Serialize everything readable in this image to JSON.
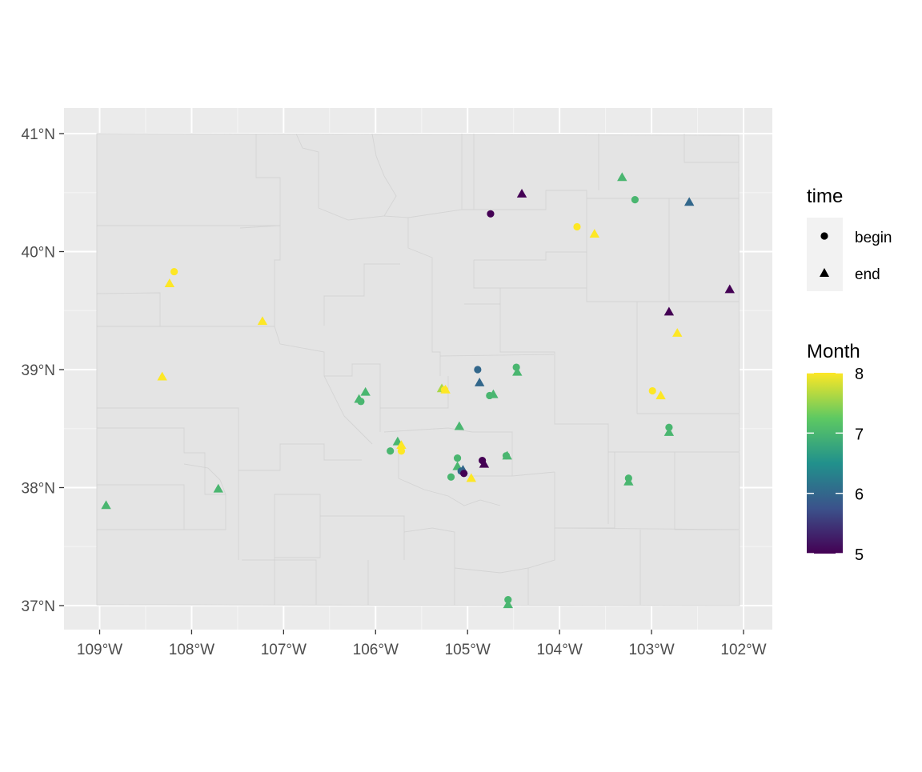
{
  "chart_data": {
    "type": "scatter",
    "title": "",
    "xlabel": "",
    "ylabel": "",
    "xlim": [
      -109.4,
      -101.7
    ],
    "ylim": [
      36.8,
      41.2
    ],
    "x_ticks": [
      {
        "value": -109,
        "label": "109°W"
      },
      {
        "value": -108,
        "label": "108°W"
      },
      {
        "value": -107,
        "label": "107°W"
      },
      {
        "value": -106,
        "label": "106°W"
      },
      {
        "value": -105,
        "label": "105°W"
      },
      {
        "value": -104,
        "label": "104°W"
      },
      {
        "value": -103,
        "label": "103°W"
      },
      {
        "value": -102,
        "label": "102°W"
      }
    ],
    "y_ticks": [
      {
        "value": 37,
        "label": "37°N"
      },
      {
        "value": 38,
        "label": "38°N"
      },
      {
        "value": 39,
        "label": "39°N"
      },
      {
        "value": 40,
        "label": "40°N"
      },
      {
        "value": 41,
        "label": "41°N"
      }
    ],
    "grid": true,
    "legend_shape": {
      "title": "time",
      "entries": [
        {
          "label": "begin",
          "shape": "circle"
        },
        {
          "label": "end",
          "shape": "triangle"
        }
      ],
      "placement": "right"
    },
    "legend_color": {
      "title": "Month",
      "min": 5,
      "max": 8,
      "ticks": [
        {
          "value": 5,
          "label": "5"
        },
        {
          "value": 6,
          "label": "6"
        },
        {
          "value": 7,
          "label": "7"
        },
        {
          "value": 8,
          "label": "8"
        }
      ],
      "palette": [
        "#440154",
        "#3b528b",
        "#21918c",
        "#5ec962",
        "#fde725"
      ],
      "placement": "right"
    },
    "points": [
      {
        "lon": -108.19,
        "lat": 39.83,
        "time": "begin",
        "month": 8
      },
      {
        "lon": -108.24,
        "lat": 39.73,
        "time": "end",
        "month": 8
      },
      {
        "lon": -107.23,
        "lat": 39.41,
        "time": "end",
        "month": 8
      },
      {
        "lon": -108.32,
        "lat": 38.94,
        "time": "end",
        "month": 8
      },
      {
        "lon": -108.93,
        "lat": 37.85,
        "time": "end",
        "month": 7
      },
      {
        "lon": -107.71,
        "lat": 37.99,
        "time": "end",
        "month": 7
      },
      {
        "lon": -106.16,
        "lat": 38.73,
        "time": "begin",
        "month": 7
      },
      {
        "lon": -106.18,
        "lat": 38.75,
        "time": "end",
        "month": 7
      },
      {
        "lon": -106.11,
        "lat": 38.81,
        "time": "end",
        "month": 7
      },
      {
        "lon": -105.84,
        "lat": 38.31,
        "time": "begin",
        "month": 7
      },
      {
        "lon": -105.76,
        "lat": 38.39,
        "time": "end",
        "month": 7
      },
      {
        "lon": -105.72,
        "lat": 38.31,
        "time": "begin",
        "month": 8
      },
      {
        "lon": -105.72,
        "lat": 38.36,
        "time": "end",
        "month": 8
      },
      {
        "lon": -105.28,
        "lat": 38.84,
        "time": "end",
        "month": 7.6
      },
      {
        "lon": -105.25,
        "lat": 38.83,
        "time": "begin",
        "month": 8
      },
      {
        "lon": -105.24,
        "lat": 38.83,
        "time": "end",
        "month": 8
      },
      {
        "lon": -105.09,
        "lat": 38.52,
        "time": "end",
        "month": 7
      },
      {
        "lon": -105.11,
        "lat": 38.25,
        "time": "begin",
        "month": 7
      },
      {
        "lon": -105.11,
        "lat": 38.18,
        "time": "end",
        "month": 7
      },
      {
        "lon": -105.07,
        "lat": 38.14,
        "time": "begin",
        "month": 6
      },
      {
        "lon": -105.05,
        "lat": 38.15,
        "time": "end",
        "month": 6
      },
      {
        "lon": -105.04,
        "lat": 38.12,
        "time": "begin",
        "month": 5
      },
      {
        "lon": -105.18,
        "lat": 38.09,
        "time": "begin",
        "month": 7
      },
      {
        "lon": -104.96,
        "lat": 38.08,
        "time": "end",
        "month": 8
      },
      {
        "lon": -104.84,
        "lat": 38.23,
        "time": "begin",
        "month": 5
      },
      {
        "lon": -104.82,
        "lat": 38.2,
        "time": "end",
        "month": 5
      },
      {
        "lon": -104.89,
        "lat": 39.0,
        "time": "begin",
        "month": 6
      },
      {
        "lon": -104.87,
        "lat": 38.89,
        "time": "end",
        "month": 6
      },
      {
        "lon": -104.76,
        "lat": 38.78,
        "time": "begin",
        "month": 7
      },
      {
        "lon": -104.72,
        "lat": 38.79,
        "time": "end",
        "month": 7
      },
      {
        "lon": -104.47,
        "lat": 39.02,
        "time": "begin",
        "month": 7
      },
      {
        "lon": -104.46,
        "lat": 38.98,
        "time": "end",
        "month": 7
      },
      {
        "lon": -104.58,
        "lat": 38.27,
        "time": "begin",
        "month": 7
      },
      {
        "lon": -104.57,
        "lat": 38.27,
        "time": "end",
        "month": 7
      },
      {
        "lon": -104.56,
        "lat": 37.05,
        "time": "begin",
        "month": 7
      },
      {
        "lon": -104.56,
        "lat": 37.01,
        "time": "end",
        "month": 7
      },
      {
        "lon": -104.75,
        "lat": 40.32,
        "time": "begin",
        "month": 5
      },
      {
        "lon": -104.41,
        "lat": 40.49,
        "time": "end",
        "month": 5
      },
      {
        "lon": -103.81,
        "lat": 40.21,
        "time": "begin",
        "month": 8
      },
      {
        "lon": -103.62,
        "lat": 40.15,
        "time": "end",
        "month": 8
      },
      {
        "lon": -103.32,
        "lat": 40.63,
        "time": "end",
        "month": 7
      },
      {
        "lon": -103.18,
        "lat": 40.44,
        "time": "begin",
        "month": 7
      },
      {
        "lon": -102.59,
        "lat": 40.42,
        "time": "end",
        "month": 6
      },
      {
        "lon": -102.15,
        "lat": 39.68,
        "time": "end",
        "month": 5
      },
      {
        "lon": -102.81,
        "lat": 39.49,
        "time": "end",
        "month": 5
      },
      {
        "lon": -102.72,
        "lat": 39.31,
        "time": "end",
        "month": 8
      },
      {
        "lon": -102.99,
        "lat": 38.82,
        "time": "begin",
        "month": 8
      },
      {
        "lon": -102.9,
        "lat": 38.78,
        "time": "end",
        "month": 8
      },
      {
        "lon": -102.81,
        "lat": 38.51,
        "time": "begin",
        "month": 7
      },
      {
        "lon": -102.81,
        "lat": 38.47,
        "time": "end",
        "month": 7
      },
      {
        "lon": -103.25,
        "lat": 38.08,
        "time": "begin",
        "month": 7
      },
      {
        "lon": -103.25,
        "lat": 38.05,
        "time": "end",
        "month": 7
      }
    ]
  }
}
